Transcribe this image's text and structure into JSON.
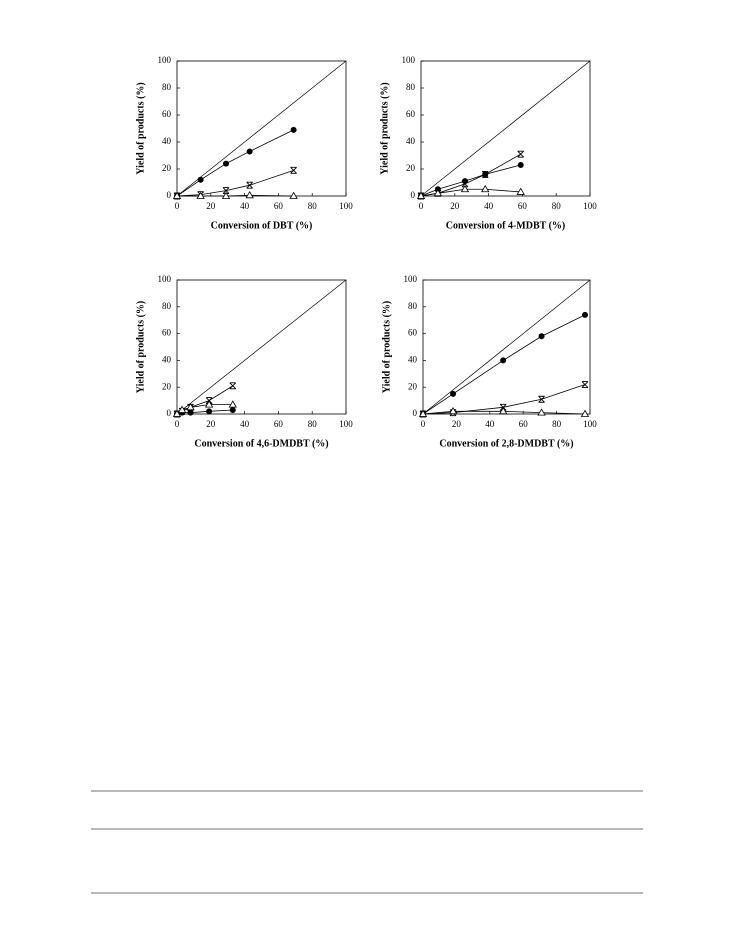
{
  "chart_data": [
    {
      "type": "line",
      "xlabel": "Conversion of DBT (%)",
      "ylabel": "Yield of products (%)",
      "xlim": [
        0,
        100
      ],
      "ylim": [
        0,
        100
      ],
      "xticks": [
        0,
        20,
        40,
        60,
        80,
        100
      ],
      "yticks": [
        0,
        20,
        40,
        60,
        80,
        100
      ],
      "x": [
        0,
        14,
        29,
        43,
        69
      ],
      "series": [
        {
          "marker": "circle",
          "color": "#000000",
          "values": [
            0,
            12,
            24,
            33,
            49
          ]
        },
        {
          "marker": "star",
          "color": "#000000",
          "values": [
            0,
            1,
            4,
            8,
            19
          ]
        },
        {
          "marker": "triangle",
          "color": "#000000",
          "values": [
            0,
            0,
            0,
            0.5,
            0
          ]
        }
      ]
    },
    {
      "type": "line",
      "xlabel": "Conversion of 4-MDBT (%)",
      "ylabel": "Yield of products (%)",
      "xlim": [
        0,
        100
      ],
      "ylim": [
        0,
        100
      ],
      "xticks": [
        0,
        20,
        40,
        60,
        80,
        100
      ],
      "yticks": [
        0,
        20,
        40,
        60,
        80,
        100
      ],
      "x": [
        0,
        10,
        26,
        38,
        59
      ],
      "series": [
        {
          "marker": "circle",
          "color": "#000000",
          "values": [
            0,
            5,
            11,
            16,
            23
          ]
        },
        {
          "marker": "star",
          "color": "#000000",
          "values": [
            0,
            2,
            9,
            16,
            31
          ]
        },
        {
          "marker": "triangle",
          "color": "#000000",
          "values": [
            0,
            2,
            5,
            5,
            3
          ]
        }
      ]
    },
    {
      "type": "line",
      "xlabel": "Conversion of 4,6-DMDBT (%)",
      "ylabel": "Yield of products (%)",
      "xlim": [
        0,
        100
      ],
      "ylim": [
        0,
        100
      ],
      "xticks": [
        0,
        20,
        40,
        60,
        80,
        100
      ],
      "yticks": [
        0,
        20,
        40,
        60,
        80,
        100
      ],
      "x": [
        0,
        3,
        8,
        19,
        33
      ],
      "series": [
        {
          "marker": "circle",
          "color": "#000000",
          "values": [
            0,
            1,
            1,
            2,
            3
          ]
        },
        {
          "marker": "star",
          "color": "#000000",
          "values": [
            0,
            2,
            5,
            10,
            21
          ]
        },
        {
          "marker": "triangle",
          "color": "#000000",
          "values": [
            0,
            3,
            5,
            7,
            7
          ]
        }
      ]
    },
    {
      "type": "line",
      "xlabel": "Conversion of 2,8-DMDBT (%)",
      "ylabel": "Yield of products (%)",
      "xlim": [
        0,
        100
      ],
      "ylim": [
        0,
        100
      ],
      "xticks": [
        0,
        20,
        40,
        60,
        80,
        100
      ],
      "yticks": [
        0,
        20,
        40,
        60,
        80,
        100
      ],
      "x": [
        0,
        18,
        48,
        71,
        97
      ],
      "series": [
        {
          "marker": "circle",
          "color": "#000000",
          "values": [
            0,
            15,
            40,
            58,
            74
          ]
        },
        {
          "marker": "star",
          "color": "#000000",
          "values": [
            0,
            1,
            5,
            11,
            22
          ]
        },
        {
          "marker": "triangle",
          "color": "#000000",
          "values": [
            0,
            2,
            2,
            1,
            0
          ]
        }
      ]
    }
  ]
}
